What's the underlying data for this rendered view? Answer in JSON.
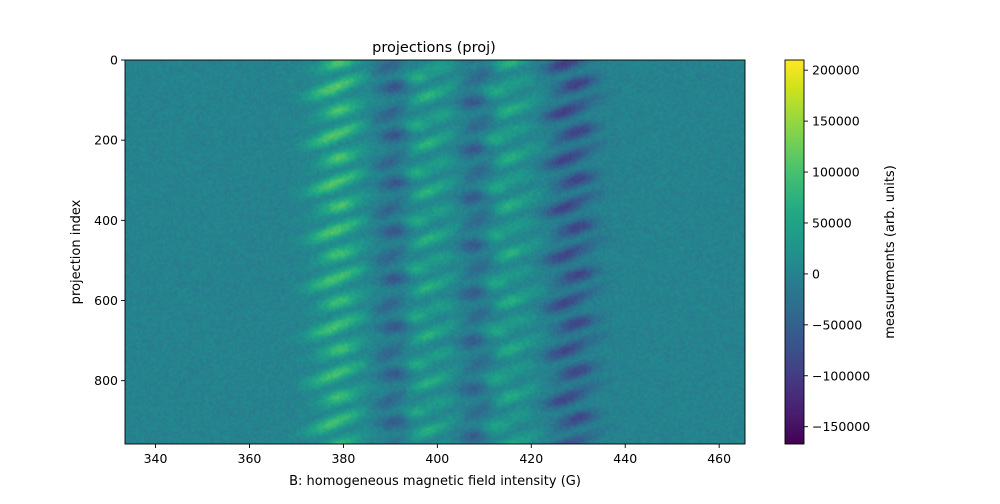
{
  "chart_data": {
    "type": "heatmap",
    "title": "projections (proj)",
    "xlabel": "B: homogeneous magnetic field intensity (G)",
    "ylabel": "projection index",
    "xlim": [
      333.5,
      465.5
    ],
    "ylim": [
      958,
      0
    ],
    "x_ticks": [
      340,
      360,
      380,
      400,
      420,
      440,
      460
    ],
    "y_ticks": [
      0,
      200,
      400,
      600,
      800
    ],
    "colorbar": {
      "label": "measurements (arb. units)",
      "colormap": "viridis",
      "range": [
        -167000,
        210000
      ],
      "ticks": [
        -150000,
        -100000,
        -50000,
        0,
        50000,
        100000,
        150000,
        200000
      ]
    },
    "bands": [
      {
        "center": 378.5,
        "width": 3.2,
        "amplitude": 90000,
        "label": "positive"
      },
      {
        "center": 381.0,
        "width": 5.5,
        "amplitude": 25000,
        "label": "positive-tail"
      },
      {
        "center": 391.0,
        "width": 2.8,
        "amplitude": -75000,
        "label": "negative"
      },
      {
        "center": 395.5,
        "width": 2.2,
        "amplitude": 70000,
        "label": "positive"
      },
      {
        "center": 401.0,
        "width": 3.0,
        "amplitude": 45000,
        "label": "positive"
      },
      {
        "center": 408.5,
        "width": 2.6,
        "amplitude": -70000,
        "label": "negative"
      },
      {
        "center": 413.0,
        "width": 2.4,
        "amplitude": 65000,
        "label": "positive"
      },
      {
        "center": 418.5,
        "width": 3.0,
        "amplitude": 35000,
        "label": "positive"
      },
      {
        "center": 428.5,
        "width": 3.4,
        "amplitude": -100000,
        "label": "negative"
      }
    ]
  }
}
